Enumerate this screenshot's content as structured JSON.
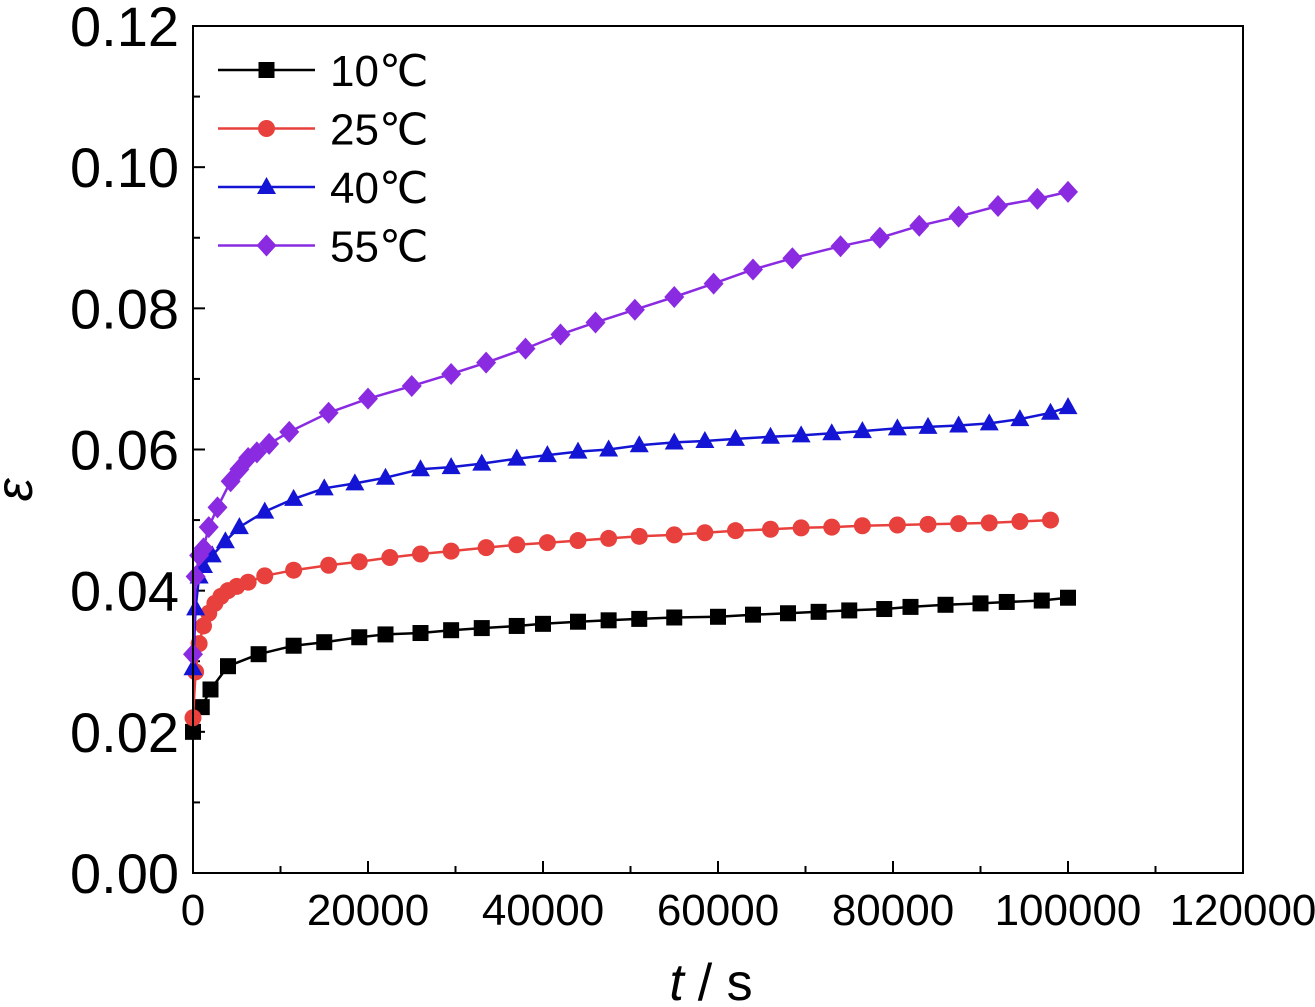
{
  "chart_data": {
    "type": "line",
    "xlabel_var": "t",
    "xlabel_unit": "/ s",
    "ylabel": "ε",
    "xlim": [
      0,
      120000
    ],
    "ylim": [
      0,
      0.12
    ],
    "xticks": [
      "0",
      "20000",
      "40000",
      "60000",
      "80000",
      "100000",
      "120000"
    ],
    "yticks": [
      "0.00",
      "0.02",
      "0.04",
      "0.06",
      "0.08",
      "0.10",
      "0.12"
    ],
    "legend_position": "top-left",
    "grid": false,
    "series": [
      {
        "name": "10℃",
        "color": "#000000",
        "marker": "square",
        "x": [
          0,
          1000,
          2000,
          4000,
          7500,
          11500,
          15000,
          19000,
          22000,
          26000,
          29500,
          33000,
          37000,
          40000,
          44000,
          47500,
          51000,
          55000,
          60000,
          64000,
          68000,
          71500,
          75000,
          79000,
          82000,
          86000,
          90000,
          93000,
          97000,
          100000
        ],
        "y": [
          0.02,
          0.0235,
          0.026,
          0.0293,
          0.031,
          0.0322,
          0.0327,
          0.0334,
          0.0338,
          0.034,
          0.0344,
          0.0347,
          0.035,
          0.0353,
          0.0356,
          0.0358,
          0.036,
          0.0362,
          0.0363,
          0.0366,
          0.0368,
          0.037,
          0.0372,
          0.0374,
          0.0377,
          0.038,
          0.0382,
          0.0384,
          0.0386,
          0.039
        ]
      },
      {
        "name": "25℃",
        "color": "#e8403c",
        "marker": "circle",
        "x": [
          0,
          300,
          700,
          1200,
          1800,
          2500,
          3200,
          4000,
          5000,
          6300,
          8200,
          11500,
          15500,
          19000,
          22500,
          26000,
          29500,
          33500,
          37000,
          40500,
          44000,
          47500,
          51000,
          55000,
          58500,
          62000,
          66000,
          69500,
          73000,
          76500,
          80500,
          84000,
          87500,
          91000,
          94500,
          98000
        ],
        "y": [
          0.022,
          0.0285,
          0.0325,
          0.035,
          0.0368,
          0.0382,
          0.0392,
          0.04,
          0.0406,
          0.0412,
          0.0421,
          0.0429,
          0.0436,
          0.0441,
          0.0447,
          0.0452,
          0.0456,
          0.0461,
          0.0465,
          0.0468,
          0.0471,
          0.0474,
          0.0477,
          0.0479,
          0.0482,
          0.0485,
          0.0487,
          0.0489,
          0.049,
          0.0492,
          0.0493,
          0.0494,
          0.0495,
          0.0496,
          0.0498,
          0.05
        ]
      },
      {
        "name": "40℃",
        "color": "#1414d4",
        "marker": "triangle",
        "x": [
          0,
          300,
          700,
          1200,
          2200,
          3700,
          5300,
          8200,
          11500,
          15000,
          18500,
          22000,
          26000,
          29500,
          33000,
          37000,
          40500,
          44000,
          47500,
          51000,
          55000,
          58500,
          62000,
          66000,
          69500,
          73000,
          76500,
          80500,
          84000,
          87500,
          91000,
          94500,
          98000,
          100000
        ],
        "y": [
          0.029,
          0.0375,
          0.042,
          0.0435,
          0.045,
          0.047,
          0.049,
          0.0512,
          0.053,
          0.0545,
          0.0552,
          0.056,
          0.0572,
          0.0575,
          0.058,
          0.0587,
          0.0592,
          0.0597,
          0.06,
          0.0606,
          0.061,
          0.0612,
          0.0615,
          0.0618,
          0.062,
          0.0623,
          0.0626,
          0.063,
          0.0632,
          0.0634,
          0.0637,
          0.0643,
          0.0652,
          0.066
        ]
      },
      {
        "name": "55℃",
        "color": "#8a2be2",
        "marker": "diamond",
        "x": [
          0,
          300,
          700,
          1200,
          1800,
          2800,
          4300,
          5300,
          6300,
          7300,
          8700,
          11000,
          15500,
          20000,
          25000,
          29500,
          33500,
          38000,
          42000,
          46000,
          50500,
          55000,
          59500,
          64000,
          68500,
          74000,
          78500,
          83000,
          87500,
          92000,
          96500,
          100000
        ],
        "y": [
          0.031,
          0.042,
          0.045,
          0.046,
          0.049,
          0.0518,
          0.0555,
          0.0572,
          0.0588,
          0.0596,
          0.0608,
          0.0625,
          0.0652,
          0.0672,
          0.069,
          0.0707,
          0.0723,
          0.0743,
          0.0763,
          0.078,
          0.0798,
          0.0816,
          0.0835,
          0.0855,
          0.0871,
          0.0888,
          0.09,
          0.0917,
          0.093,
          0.0945,
          0.0955,
          0.0965
        ]
      }
    ]
  }
}
